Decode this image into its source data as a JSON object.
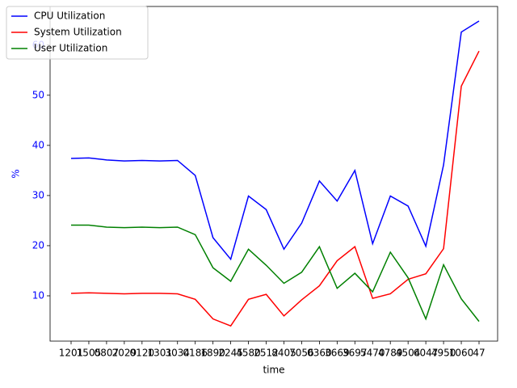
{
  "chart_data": {
    "type": "line",
    "x_label": "time",
    "y_label": "%",
    "categories": [
      "1201",
      "1505",
      "0807",
      "2029",
      "0120",
      "1301",
      "3034",
      "0186",
      "1890",
      "2245",
      "4580",
      "2512",
      "8405",
      "7056",
      "0360",
      "3669",
      "3697",
      "5470",
      "4789",
      "4504",
      "6047",
      "4950",
      "1060",
      "47"
    ],
    "series": [
      {
        "name": "CPU Utilization",
        "color": "#0000ff",
        "values": [
          37.4,
          37.5,
          37.1,
          36.9,
          37.0,
          36.9,
          37.0,
          34.0,
          21.6,
          17.3,
          29.9,
          27.2,
          19.3,
          24.5,
          32.9,
          28.9,
          35.0,
          20.4,
          29.9,
          27.9,
          19.9,
          36.1,
          62.6,
          64.8
        ]
      },
      {
        "name": "System Utilization",
        "color": "#ff0000",
        "values": [
          10.5,
          10.6,
          10.5,
          10.4,
          10.5,
          10.5,
          10.4,
          9.3,
          5.4,
          4.0,
          9.3,
          10.3,
          6.0,
          9.2,
          12.0,
          17.0,
          19.8,
          9.5,
          10.4,
          13.3,
          14.4,
          19.4,
          51.8,
          58.8
        ]
      },
      {
        "name": "User Utilization",
        "color": "#008000",
        "values": [
          24.1,
          24.1,
          23.7,
          23.6,
          23.7,
          23.6,
          23.7,
          22.2,
          15.6,
          12.9,
          19.3,
          16.1,
          12.5,
          14.7,
          19.8,
          11.5,
          14.5,
          10.8,
          18.7,
          13.6,
          5.4,
          16.2,
          9.4,
          4.9
        ]
      }
    ],
    "ylim": [
      0.97,
      67.7
    ],
    "yticks": [
      10,
      20,
      30,
      40,
      50,
      60
    ],
    "ytick_color": "#0000ff",
    "legend": "upper left"
  }
}
